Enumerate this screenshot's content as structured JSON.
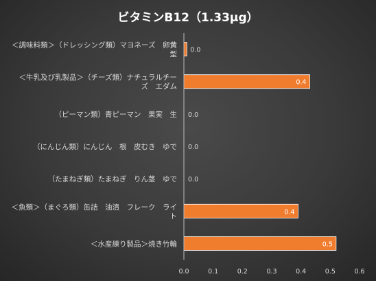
{
  "chart_data": {
    "type": "bar",
    "orientation": "horizontal",
    "title": "ビタミンB12（1.33μg）",
    "categories": [
      "＜調味料類＞（ドレッシング類）マヨネーズ　卵黄型",
      "＜牛乳及び乳製品＞（チーズ類）ナチュラルチーズ　エダム",
      "（ピーマン類）青ピーマン　果実　生",
      "（にんじん類）にんじん　根　皮むき　ゆで",
      "（たまねぎ類）たまねぎ　りん茎　ゆで",
      "＜魚類＞（まぐろ類）缶詰　油漬　フレーク　ライト",
      "＜水産練り製品＞焼き竹輪"
    ],
    "category_lines": [
      [
        "＜調味料類＞（ドレッシング類）マヨネーズ　卵黄",
        "型"
      ],
      [
        "＜牛乳及び乳製品＞（チーズ類）ナチュラルチー",
        "ズ　エダム"
      ],
      [
        "（ピーマン類）青ピーマン　果実　生"
      ],
      [
        "（にんじん類）にんじん　根　皮むき　ゆで"
      ],
      [
        "（たまねぎ類）たまねぎ　りん茎　ゆで"
      ],
      [
        "＜魚類＞（まぐろ類）缶詰　油漬　フレーク　ライ",
        "ト"
      ],
      [
        "＜水産練り製品＞焼き竹輪"
      ]
    ],
    "values": [
      0.01,
      0.43,
      0.0,
      0.0,
      0.0,
      0.39,
      0.52
    ],
    "data_labels": [
      "0.0",
      "0.4",
      "0.0",
      "0.0",
      "0.0",
      "0.4",
      "0.5"
    ],
    "xlim": [
      0,
      0.6
    ],
    "xticks": [
      "0.0",
      "0.1",
      "0.2",
      "0.3",
      "0.4",
      "0.5",
      "0.6"
    ],
    "xlabel": "",
    "ylabel": "",
    "grid": false,
    "legend": "none",
    "colors": {
      "bar": "#f07c2e",
      "bar_border": "#ffffff",
      "text": "#d9d9d9",
      "title": "#ffffff",
      "axis": "#bfbfbf"
    }
  }
}
